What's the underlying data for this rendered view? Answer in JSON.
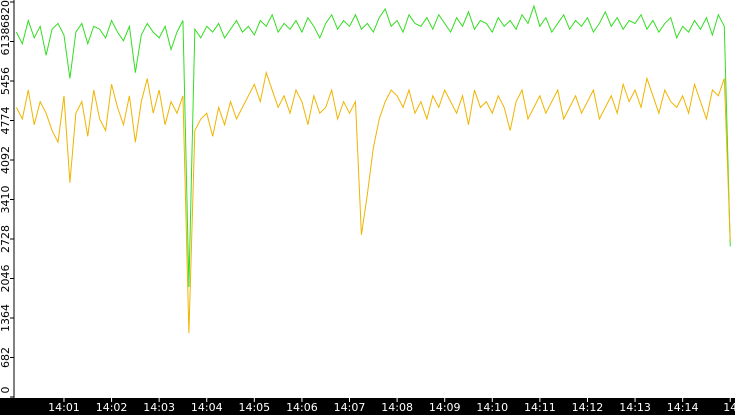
{
  "chart_data": {
    "type": "line",
    "x": [
      0,
      0.125,
      0.25,
      0.375,
      0.5,
      0.625,
      0.75,
      0.875,
      1,
      1.125,
      1.25,
      1.375,
      1.5,
      1.625,
      1.75,
      1.875,
      2,
      2.125,
      2.25,
      2.375,
      2.5,
      2.625,
      2.75,
      2.875,
      3,
      3.125,
      3.25,
      3.375,
      3.5,
      3.625,
      3.75,
      3.875,
      4,
      4.125,
      4.25,
      4.375,
      4.5,
      4.625,
      4.75,
      4.875,
      5,
      5.125,
      5.25,
      5.375,
      5.5,
      5.625,
      5.75,
      5.875,
      6,
      6.125,
      6.25,
      6.375,
      6.5,
      6.625,
      6.75,
      6.875,
      7,
      7.125,
      7.25,
      7.375,
      7.5,
      7.625,
      7.75,
      7.875,
      8,
      8.125,
      8.25,
      8.375,
      8.5,
      8.625,
      8.75,
      8.875,
      9,
      9.125,
      9.25,
      9.375,
      9.5,
      9.625,
      9.75,
      9.875,
      10,
      10.125,
      10.25,
      10.375,
      10.5,
      10.625,
      10.75,
      10.875,
      11,
      11.125,
      11.25,
      11.375,
      11.5,
      11.625,
      11.75,
      11.875,
      12,
      12.125,
      12.25,
      12.375,
      12.5,
      12.625,
      12.75,
      12.875,
      13,
      13.125,
      13.25,
      13.375,
      13.5,
      13.625,
      13.75,
      13.875,
      14,
      14.125,
      14.25,
      14.375,
      14.5,
      14.625,
      14.75,
      14.875,
      15
    ],
    "series": [
      {
        "color": "#33dd22",
        "values": [
          6300,
          6100,
          6500,
          6200,
          6400,
          5900,
          6350,
          6450,
          6250,
          5500,
          6300,
          6450,
          6100,
          6400,
          6350,
          6200,
          6500,
          6300,
          6150,
          6400,
          5600,
          6250,
          6450,
          6300,
          6200,
          6400,
          6000,
          6300,
          6500,
          1900,
          6350,
          6200,
          6400,
          6300,
          6450,
          6200,
          6350,
          6500,
          6300,
          6400,
          6250,
          6500,
          6400,
          6600,
          6300,
          6450,
          6350,
          6500,
          6300,
          6550,
          6400,
          6200,
          6450,
          6600,
          6350,
          6500,
          6400,
          6600,
          6350,
          6450,
          6300,
          6550,
          6700,
          6400,
          6500,
          6300,
          6600,
          6450,
          6400,
          6550,
          6350,
          6600,
          6450,
          6300,
          6550,
          6400,
          6650,
          6350,
          6500,
          6450,
          6300,
          6550,
          6400,
          6500,
          6350,
          6600,
          6450,
          6750,
          6400,
          6550,
          6300,
          6450,
          6600,
          6350,
          6500,
          6400,
          6550,
          6300,
          6450,
          6650,
          6400,
          6550,
          6350,
          6500,
          6450,
          6600,
          6350,
          6500,
          6300,
          6450,
          6550,
          6200,
          6400,
          6300,
          6500,
          6350,
          6550,
          6250,
          6600,
          6400,
          2600
        ]
      },
      {
        "color": "#f0b400",
        "values": [
          5000,
          4800,
          5300,
          4700,
          5100,
          4900,
          4600,
          4400,
          5200,
          3700,
          4900,
          5100,
          4500,
          5300,
          4800,
          4600,
          5400,
          5000,
          4700,
          5200,
          4400,
          5100,
          5500,
          4900,
          5300,
          4700,
          5100,
          4900,
          5200,
          1100,
          4600,
          4800,
          4900,
          4500,
          5000,
          4700,
          5100,
          4800,
          5000,
          5200,
          5400,
          5100,
          5600,
          5300,
          5000,
          5200,
          4900,
          5300,
          5100,
          4700,
          5200,
          4900,
          5000,
          5300,
          4800,
          5100,
          4900,
          5100,
          2800,
          3500,
          4300,
          4800,
          5100,
          5300,
          5200,
          5000,
          5300,
          4900,
          5100,
          4800,
          5200,
          5000,
          5300,
          5100,
          4900,
          5200,
          4700,
          5300,
          5000,
          5100,
          4900,
          5200,
          5000,
          4600,
          5100,
          5300,
          4800,
          5000,
          5200,
          4900,
          5100,
          5300,
          4800,
          5000,
          5200,
          4900,
          5100,
          5300,
          4800,
          5000,
          5200,
          4900,
          5400,
          5100,
          5300,
          5000,
          5500,
          5200,
          4900,
          5300,
          5100,
          5000,
          5200,
          4900,
          5400,
          5100,
          4800,
          5300,
          5200,
          5500,
          2700
        ]
      }
    ],
    "xlim": [
      -0.05,
      15.1
    ],
    "xticks": [
      {
        "value": 1,
        "label": "14:01"
      },
      {
        "value": 2,
        "label": "14:02"
      },
      {
        "value": 3,
        "label": "14:03"
      },
      {
        "value": 4,
        "label": "14:04"
      },
      {
        "value": 5,
        "label": "14:05"
      },
      {
        "value": 6,
        "label": "14:06"
      },
      {
        "value": 7,
        "label": "14:07"
      },
      {
        "value": 8,
        "label": "14:08"
      },
      {
        "value": 9,
        "label": "14:09"
      },
      {
        "value": 10,
        "label": "14:10"
      },
      {
        "value": 11,
        "label": "14:11"
      },
      {
        "value": 12,
        "label": "14:12"
      },
      {
        "value": 13,
        "label": "14:13"
      },
      {
        "value": 14,
        "label": "14:14"
      },
      {
        "value": 15,
        "label": "14"
      }
    ],
    "ylim": [
      0,
      6820
    ],
    "yticks": [
      0,
      682,
      1364,
      2046,
      2728,
      3410,
      4092,
      4774,
      5456,
      6138,
      6820
    ]
  }
}
